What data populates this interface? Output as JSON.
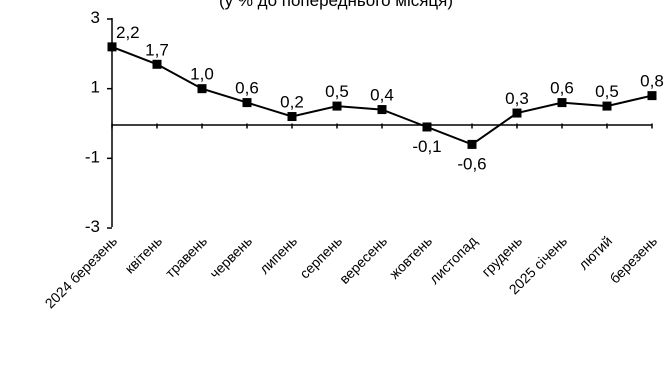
{
  "chart_data": {
    "type": "line",
    "title": "(у % до попереднього місяця)",
    "categories": [
      "2024 березень",
      "квітень",
      "травень",
      "червень",
      "липень",
      "серпень",
      "вересень",
      "жовтень",
      "листопад",
      "грудень",
      "2025 січень",
      "лютий",
      "березень"
    ],
    "values": [
      2.2,
      1.7,
      1.0,
      0.6,
      0.2,
      0.5,
      0.4,
      -0.1,
      -0.6,
      0.3,
      0.6,
      0.5,
      0.8
    ],
    "data_labels": [
      "2,2",
      "1,7",
      "1,0",
      "0,6",
      "0,2",
      "0,5",
      "0,4",
      "-0,1",
      "-0,6",
      "0,3",
      "0,6",
      "0,5",
      "0,8"
    ],
    "y_ticks": [
      3,
      1,
      -1,
      -3
    ],
    "y_tick_labels": [
      "3",
      "1",
      "-1",
      "-3"
    ],
    "ylim": [
      -3,
      3
    ],
    "grid": false,
    "marker": "square",
    "line_color": "#000000"
  }
}
